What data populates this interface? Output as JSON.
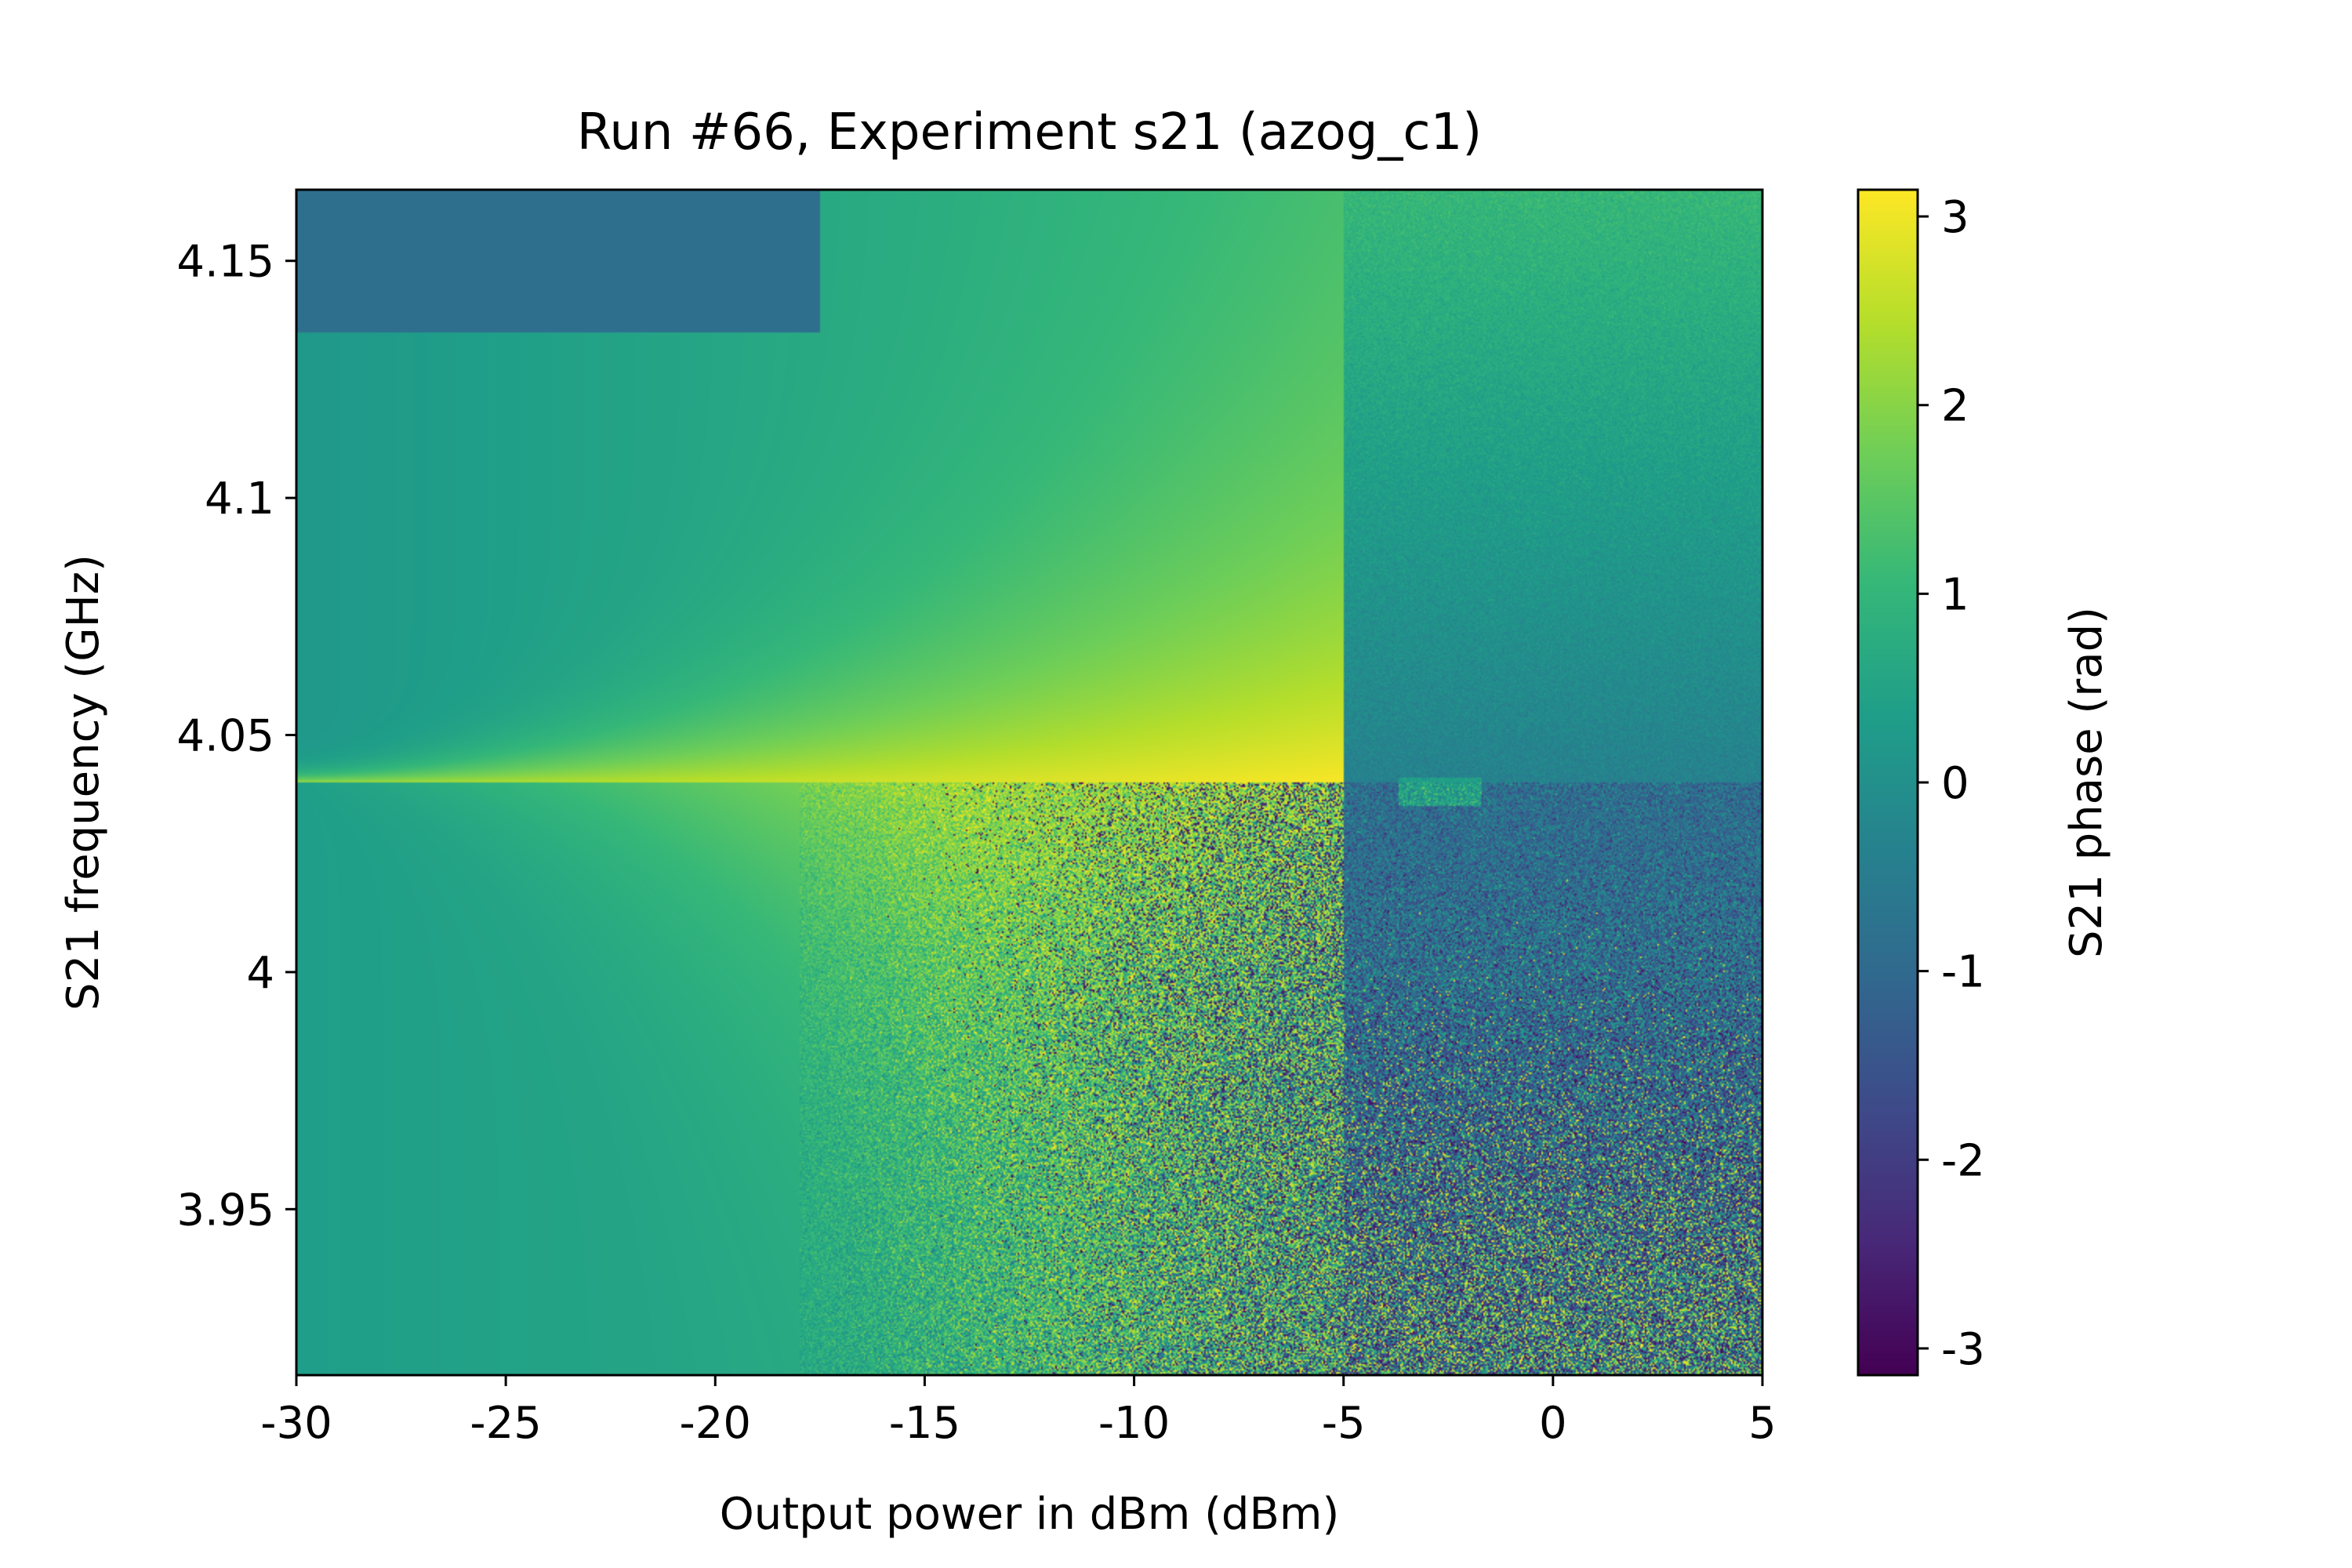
{
  "chart_data": {
    "type": "heatmap",
    "title": "Run #66, Experiment s21 (azog_c1)",
    "xlabel": "Output power in dBm (dBm)",
    "ylabel": "S21 frequency (GHz)",
    "colorbar_label": "S21 phase (rad)",
    "colormap": "viridis",
    "xlim": [
      -30,
      5
    ],
    "ylim": [
      3.915,
      4.165
    ],
    "clim": [
      -3.1416,
      3.1416
    ],
    "x_ticks": [
      -30,
      -25,
      -20,
      -15,
      -10,
      -5,
      0,
      5
    ],
    "x_tick_labels": [
      "-30",
      "-25",
      "-20",
      "-15",
      "-10",
      "-5",
      "0",
      "5"
    ],
    "y_ticks": [
      3.95,
      4.0,
      4.05,
      4.1,
      4.15
    ],
    "y_tick_labels": [
      "3.95",
      "4",
      "4.05",
      "4.1",
      "4.15"
    ],
    "colorbar_ticks": [
      -3,
      -2,
      -1,
      0,
      1,
      2,
      3
    ],
    "colorbar_tick_labels": [
      "-3",
      "-2",
      "-1",
      "0",
      "1",
      "2",
      "3"
    ],
    "resonance_frequency_ghz": 4.04,
    "transition_power_dbm": -5,
    "grid": false
  }
}
